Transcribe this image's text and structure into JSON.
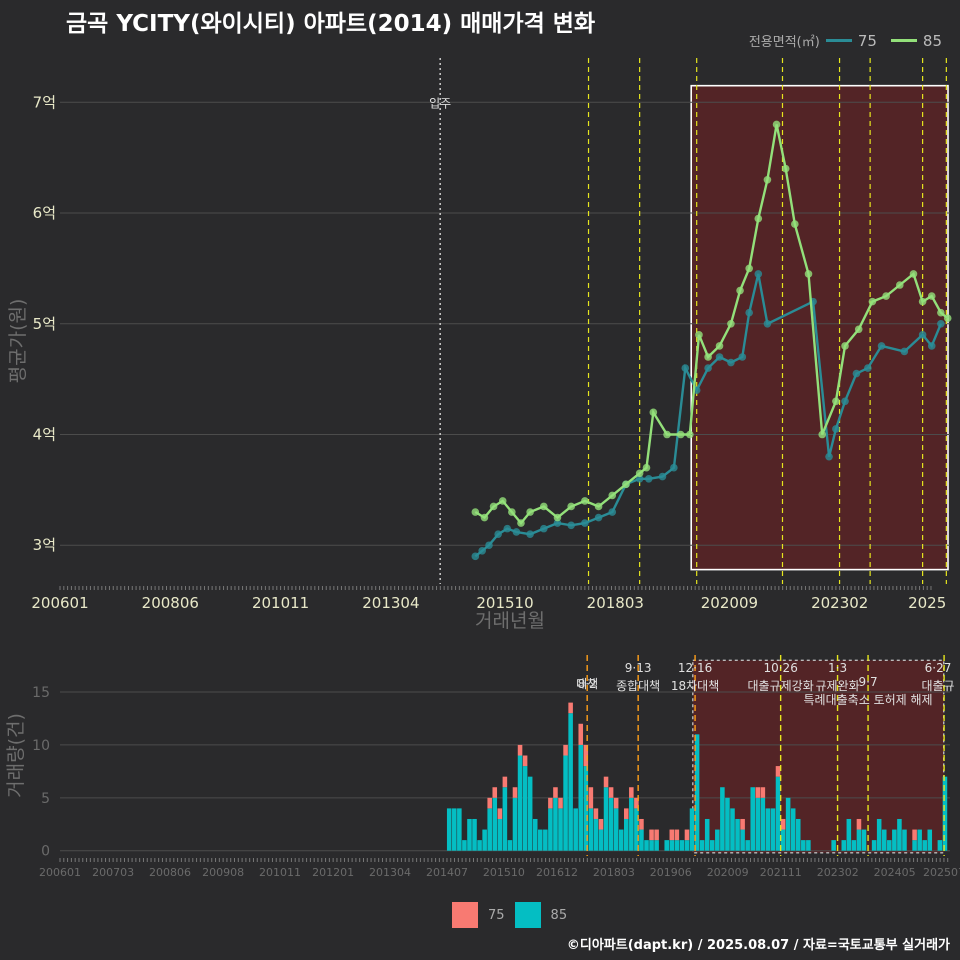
{
  "title": "금곡 YCITY(와이시티) 아파트(2014) 매매가격 변화",
  "credit": "©디아파트(dapt.kr) / 2025.08.07 / 자료=국토교통부 실거래가",
  "colors": {
    "c75": "#2a8c96",
    "c85": "#93e07a",
    "bar75": "#f87a72",
    "bar85": "#04bec3",
    "vline": "#e6e61e",
    "vlineOrange": "#ff9f1a",
    "highlight": "#5a2326"
  },
  "legend_top": {
    "title": "전용면적(㎡)",
    "items": [
      "75",
      "85"
    ]
  },
  "legend_bottom": {
    "items": [
      "75",
      "85"
    ]
  },
  "chart_data": [
    {
      "type": "line",
      "title": "금곡 YCITY(와이시티) 아파트(2014) 매매가격 변화",
      "xlabel": "거래년월",
      "ylabel": "평균가(원)",
      "x_ticks": [
        "200601",
        "200806",
        "201011",
        "201304",
        "201510",
        "201803",
        "202009",
        "202302",
        "2025"
      ],
      "y_ticks": [
        {
          "value": 3,
          "label": "3억"
        },
        {
          "value": 4,
          "label": "4억"
        },
        {
          "value": 5,
          "label": "5억"
        },
        {
          "value": 6,
          "label": "6억"
        },
        {
          "value": 7,
          "label": "7억"
        }
      ],
      "ylim": [
        2.65,
        7.4
      ],
      "xlim": [
        2006.0,
        2025.5
      ],
      "move_in": {
        "x": 2014.33,
        "label": "입주"
      },
      "highlight_range": [
        2019.83,
        2025.5
      ],
      "policy_lines": [
        2017.58,
        2018.7,
        2019.95,
        2021.83,
        2023.08,
        2023.75,
        2024.9,
        2025.42
      ],
      "series": [
        {
          "name": "75",
          "x": [
            2015.1,
            2015.25,
            2015.4,
            2015.6,
            2015.8,
            2016.0,
            2016.3,
            2016.6,
            2016.9,
            2017.2,
            2017.5,
            2017.8,
            2018.1,
            2018.4,
            2018.7,
            2018.9,
            2019.2,
            2019.45,
            2019.7,
            2019.95,
            2020.2,
            2020.45,
            2020.7,
            2020.95,
            2021.1,
            2021.3,
            2021.5,
            2022.5,
            2022.85,
            2023.0,
            2023.2,
            2023.45,
            2023.7,
            2024.0,
            2024.5,
            2024.9,
            2025.1,
            2025.3
          ],
          "values": [
            2.9,
            2.95,
            3.0,
            3.1,
            3.15,
            3.12,
            3.1,
            3.15,
            3.2,
            3.18,
            3.2,
            3.25,
            3.3,
            3.55,
            3.6,
            3.6,
            3.62,
            3.7,
            4.6,
            4.4,
            4.6,
            4.7,
            4.65,
            4.7,
            5.1,
            5.45,
            5.0,
            5.2,
            3.8,
            4.05,
            4.3,
            4.55,
            4.6,
            4.8,
            4.75,
            4.9,
            4.8,
            5.0
          ]
        },
        {
          "name": "85",
          "x": [
            2015.1,
            2015.3,
            2015.5,
            2015.7,
            2015.9,
            2016.1,
            2016.3,
            2016.6,
            2016.9,
            2017.2,
            2017.5,
            2017.8,
            2018.1,
            2018.4,
            2018.7,
            2018.85,
            2019.0,
            2019.3,
            2019.6,
            2019.8,
            2020.0,
            2020.2,
            2020.45,
            2020.7,
            2020.9,
            2021.1,
            2021.3,
            2021.5,
            2021.7,
            2021.9,
            2022.1,
            2022.4,
            2022.7,
            2023.0,
            2023.2,
            2023.5,
            2023.8,
            2024.1,
            2024.4,
            2024.7,
            2024.9,
            2025.1,
            2025.3,
            2025.45
          ],
          "values": [
            3.3,
            3.25,
            3.35,
            3.4,
            3.3,
            3.2,
            3.3,
            3.35,
            3.25,
            3.35,
            3.4,
            3.35,
            3.45,
            3.55,
            3.65,
            3.7,
            4.2,
            4.0,
            4.0,
            4.0,
            4.9,
            4.7,
            4.8,
            5.0,
            5.3,
            5.5,
            5.95,
            6.3,
            6.8,
            6.4,
            5.9,
            5.45,
            4.0,
            4.3,
            4.8,
            4.95,
            5.2,
            5.25,
            5.35,
            5.45,
            5.2,
            5.25,
            5.1,
            5.05
          ]
        }
      ]
    },
    {
      "type": "bar",
      "xlabel": "",
      "ylabel": "거래량(건)",
      "x_ticks": [
        "200601",
        "200703",
        "200806",
        "200908",
        "201011",
        "201201",
        "201304",
        "201407",
        "201510",
        "201612",
        "201803",
        "201906",
        "202009",
        "202111",
        "202302",
        "202405",
        "202507"
      ],
      "y_ticks": [
        0,
        5,
        10,
        15
      ],
      "ylim": [
        -0.5,
        18.5
      ],
      "xlim": [
        2006.0,
        2025.55
      ],
      "highlight_range": [
        2019.9,
        2025.5
      ],
      "policy_lines": [
        {
          "x": 2017.58,
          "date": "8·2",
          "label": "대책"
        },
        {
          "x": 2018.7,
          "date": "9·13",
          "label": "종합대책"
        },
        {
          "x": 2019.95,
          "date": "12·16",
          "label": "18차대책"
        },
        {
          "x": 2021.83,
          "date": "10·26",
          "label": "대출규제강화"
        },
        {
          "x": 2023.08,
          "date": "1·3",
          "label": "규제완화"
        },
        {
          "x": 2023.75,
          "date": "9·7",
          "label": "특례대출축소 토허제 해제"
        },
        {
          "x": 2025.42,
          "date": "6·27",
          "label": "대출규"
        }
      ],
      "series": [
        {
          "name": "75",
          "values": [
            0,
            0,
            0,
            0,
            0,
            0,
            0,
            0,
            1,
            1,
            1,
            1,
            0,
            1,
            1,
            1,
            0,
            0,
            0,
            0,
            1,
            1,
            1,
            1,
            1,
            0,
            2,
            2,
            2,
            1,
            1,
            1,
            1,
            1,
            0,
            1,
            1,
            1,
            1,
            0,
            1,
            1,
            0,
            0,
            1,
            1,
            0,
            1,
            0,
            0,
            0,
            0,
            0,
            0,
            0,
            0,
            0,
            0,
            1,
            0,
            0,
            1,
            1,
            0,
            0,
            1,
            1,
            0,
            0,
            0,
            0,
            0,
            0,
            0,
            0,
            0,
            0,
            0,
            0,
            0,
            0,
            1,
            0,
            0,
            0,
            0,
            0,
            0,
            0,
            0,
            0,
            0,
            1,
            0,
            0,
            0,
            0,
            0,
            0
          ]
        },
        {
          "name": "85",
          "values": [
            4,
            4,
            4,
            1,
            3,
            3,
            1,
            2,
            4,
            5,
            3,
            6,
            1,
            5,
            9,
            8,
            7,
            3,
            2,
            2,
            4,
            5,
            4,
            9,
            13,
            4,
            10,
            8,
            4,
            3,
            2,
            6,
            5,
            4,
            2,
            3,
            5,
            4,
            2,
            1,
            1,
            1,
            0,
            1,
            1,
            1,
            1,
            1,
            4,
            11,
            1,
            3,
            1,
            2,
            6,
            5,
            4,
            3,
            2,
            1,
            6,
            5,
            5,
            4,
            4,
            7,
            2,
            5,
            4,
            3,
            1,
            1,
            0,
            0,
            0,
            0,
            1,
            0,
            1,
            3,
            1,
            2,
            2,
            0,
            1,
            3,
            2,
            1,
            2,
            3,
            2,
            0,
            1,
            2,
            1,
            2,
            0,
            1,
            7
          ]
        }
      ]
    }
  ]
}
